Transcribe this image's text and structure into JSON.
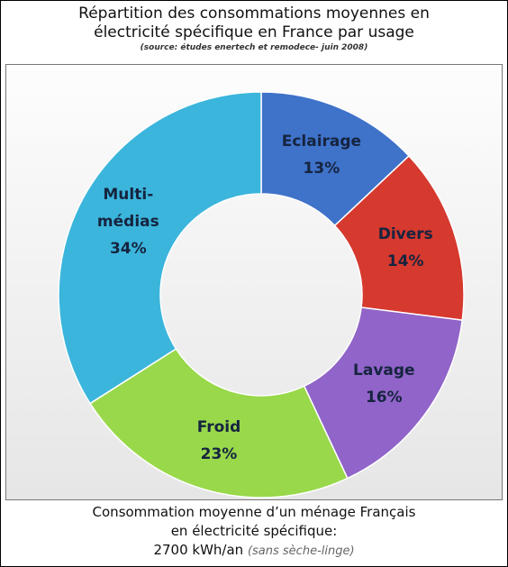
{
  "chart_data": {
    "type": "pie",
    "donut": true,
    "title": [
      "Répartition des consommations moyennes en",
      "électricité spécifique en France par usage"
    ],
    "subtitle": "(source: études enertech et remodece- juin 2008)",
    "categories": [
      "Eclairage",
      "Divers",
      "Lavage",
      "Froid",
      "Multi-médias"
    ],
    "values": [
      13,
      14,
      16,
      23,
      34
    ],
    "value_labels": [
      "13%",
      "14%",
      "16%",
      "23%",
      "34%"
    ],
    "colors": [
      "#3f72c9",
      "#d6392e",
      "#9064c8",
      "#98d84a",
      "#3bb5dc"
    ],
    "footer": [
      "Consommation moyenne d’un ménage Français",
      "en électricité spécifique:",
      "2700 kWh/an"
    ],
    "footer_note": "(sans sèche-linge)"
  }
}
